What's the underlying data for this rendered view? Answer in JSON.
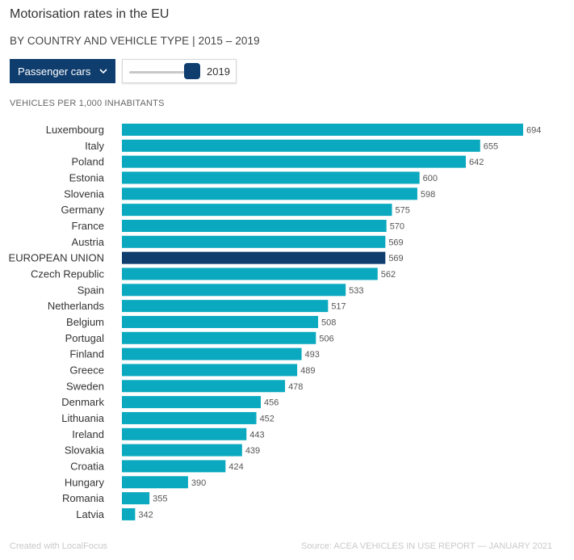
{
  "header": {
    "title": "Motorisation rates in the EU",
    "subtitle": "BY COUNTRY AND VEHICLE TYPE | 2015 – 2019"
  },
  "controls": {
    "vehicle_type": "Passenger cars",
    "year": "2019",
    "year_slider_position": 1.0,
    "dropdown_icon": "chevron-down-icon"
  },
  "unit_label": "VEHICLES PER 1,000 INHABITANTS",
  "footer": {
    "credit": "Created with LocalFocus",
    "source": "Source:  ACEA VEHICLES IN USE REPORT — JANUARY 2021"
  },
  "colors": {
    "bar": "#0aa9bf",
    "highlight_bar": "#0f3d6e"
  },
  "chart_data": {
    "type": "bar",
    "orientation": "horizontal",
    "categories": [
      "Luxembourg",
      "Italy",
      "Poland",
      "Estonia",
      "Slovenia",
      "Germany",
      "France",
      "Austria",
      "EUROPEAN UNION",
      "Czech Republic",
      "Spain",
      "Netherlands",
      "Belgium",
      "Portugal",
      "Finland",
      "Greece",
      "Sweden",
      "Denmark",
      "Lithuania",
      "Ireland",
      "Slovakia",
      "Croatia",
      "Hungary",
      "Romania",
      "Latvia"
    ],
    "values": [
      694,
      655,
      642,
      600,
      598,
      575,
      570,
      569,
      569,
      562,
      533,
      517,
      508,
      506,
      493,
      489,
      478,
      456,
      452,
      443,
      439,
      424,
      390,
      355,
      342
    ],
    "highlight": [
      "EUROPEAN UNION"
    ],
    "xlim": [
      330,
      694
    ],
    "grid": false,
    "data_labels": true
  }
}
